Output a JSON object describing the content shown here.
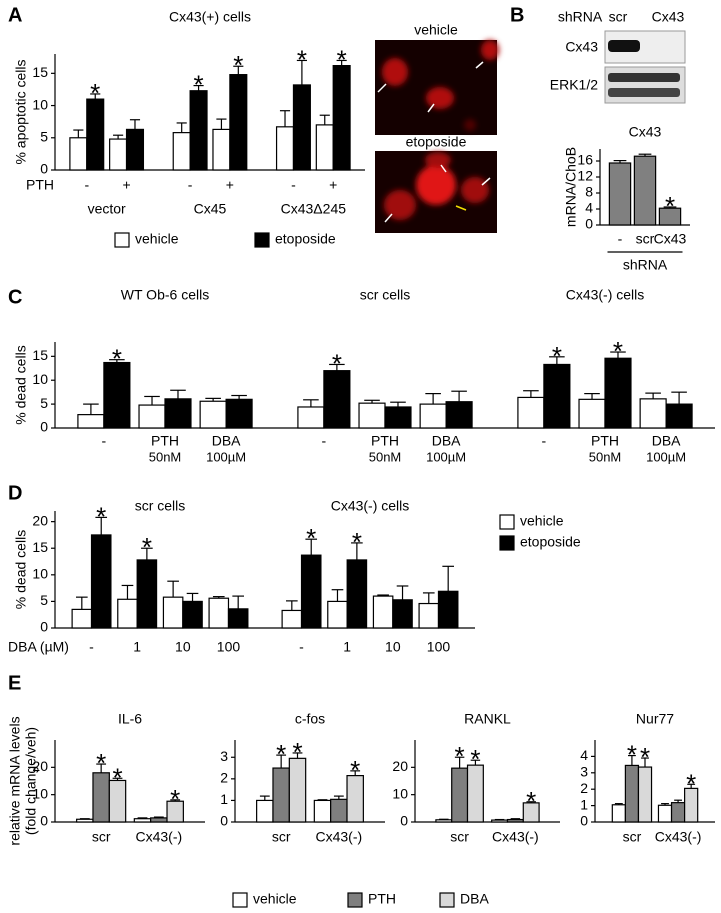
{
  "panels": [
    "A",
    "B",
    "C",
    "D",
    "E"
  ],
  "images": [
    {
      "label": "vehicle"
    },
    {
      "label": "etoposide"
    }
  ],
  "blot": {
    "header": "shRNA",
    "lanes": [
      "scr",
      "Cx43"
    ],
    "rows": [
      "Cx43",
      "ERK1/2"
    ]
  },
  "chart_data": [
    {
      "type": "bar",
      "title": "Cx43(+) cells",
      "ylabel": "% apoptotic cells",
      "xlabel": "PTH",
      "categories": [
        "-",
        "+",
        "-",
        "+",
        "-",
        "+"
      ],
      "groups": [
        "vector",
        "Cx45",
        "Cx43Δ245"
      ],
      "ylim": [
        0,
        18
      ],
      "yticks": [
        0,
        5,
        10,
        15
      ],
      "legend": "bottom",
      "series": [
        {
          "name": "vehicle",
          "color": "#ffffff",
          "values": [
            5,
            4.8,
            5.8,
            6.3,
            6.7,
            7
          ],
          "errors": [
            1.2,
            0.6,
            1.5,
            1.6,
            2.5,
            1.5
          ]
        },
        {
          "name": "etoposide",
          "color": "#000000",
          "values": [
            11,
            6.3,
            12.3,
            14.8,
            13.2,
            16.2
          ],
          "errors": [
            0.8,
            1.5,
            0.8,
            1.3,
            3.8,
            0.8
          ],
          "annotations": [
            "*",
            null,
            "*",
            "*",
            "*",
            "*"
          ]
        }
      ]
    },
    {
      "type": "bar",
      "title": "Cx43",
      "ylabel": "mRNA/ChoB",
      "categories": [
        "-",
        "scr",
        "Cx43"
      ],
      "groups": [
        "shRNA"
      ],
      "ylim": [
        0,
        19
      ],
      "yticks": [
        0,
        4,
        8,
        12,
        16
      ],
      "series": [
        {
          "color": "#808080",
          "values": [
            15.5,
            17.2,
            4.2
          ],
          "errors": [
            0.6,
            0.5,
            0.3
          ],
          "annotations": [
            null,
            null,
            "*"
          ]
        }
      ]
    },
    {
      "type": "bar",
      "ylabel": "% dead cells",
      "categories": [
        "-",
        "PTH",
        "DBA",
        "-",
        "PTH",
        "DBA",
        "-",
        "PTH",
        "DBA"
      ],
      "sublabels": [
        null,
        "50nM",
        "100µM",
        null,
        "50nM",
        "100µM",
        null,
        "50nM",
        "100µM"
      ],
      "groups": [
        "WT Ob-6 cells",
        "scr cells",
        "Cx43(-) cells"
      ],
      "ylim": [
        0,
        18
      ],
      "yticks": [
        0,
        5,
        10,
        15
      ],
      "series": [
        {
          "color": "#ffffff",
          "values": [
            2.8,
            4.8,
            5.6,
            4.4,
            5.2,
            5,
            6.4,
            6,
            6.1
          ],
          "errors": [
            2.2,
            1.8,
            0.6,
            1.5,
            0.6,
            2.2,
            1.4,
            1.2,
            1.2
          ]
        },
        {
          "color": "#000000",
          "values": [
            13.7,
            6.1,
            6,
            12,
            4.4,
            5.5,
            13.3,
            14.6,
            5
          ],
          "errors": [
            0.6,
            1.8,
            0.8,
            1.3,
            1,
            2.2,
            1.6,
            1.3,
            2.5
          ],
          "annotations": [
            "*",
            null,
            null,
            "*",
            null,
            null,
            "*",
            "*",
            null
          ]
        }
      ]
    },
    {
      "type": "bar",
      "ylabel": "% dead cells",
      "xlabel": "DBA (µM)",
      "categories": [
        "-",
        "1",
        "10",
        "100",
        "-",
        "1",
        "10",
        "100"
      ],
      "groups": [
        "scr cells",
        "Cx43(-) cells"
      ],
      "ylim": [
        0,
        22
      ],
      "yticks": [
        0,
        5,
        10,
        15,
        20
      ],
      "legend": "right",
      "series": [
        {
          "name": "vehicle",
          "color": "#ffffff",
          "values": [
            3.5,
            5.4,
            5.8,
            5.6,
            3.3,
            5,
            6,
            4.6
          ],
          "errors": [
            2.3,
            2.6,
            3,
            0.3,
            1.8,
            2.2,
            0.2,
            2
          ]
        },
        {
          "name": "etoposide",
          "color": "#000000",
          "values": [
            17.5,
            12.8,
            5,
            3.6,
            13.7,
            12.8,
            5.3,
            6.9
          ],
          "errors": [
            3.3,
            2.2,
            1.5,
            2.4,
            3,
            3.2,
            2.6,
            4.7
          ],
          "annotations": [
            "*",
            "*",
            null,
            null,
            "*",
            "*",
            null,
            null
          ]
        }
      ]
    },
    {
      "type": "bar",
      "title": "IL-6",
      "ylabel": [
        "relative mRNA levels",
        "(fold change/veh)"
      ],
      "categories": [
        "scr",
        "Cx43(-)"
      ],
      "ylim": [
        0,
        30
      ],
      "yticks": [
        0,
        10,
        20
      ],
      "legend": "bottom",
      "series": [
        {
          "name": "vehicle",
          "color": "#ffffff",
          "values": [
            1,
            1.2
          ],
          "errors": [
            0.2,
            0.3
          ]
        },
        {
          "name": "PTH",
          "color": "#7f7f7f",
          "values": [
            18,
            1.5
          ],
          "errors": [
            3.2,
            0.3
          ],
          "annotations": [
            "*",
            null
          ]
        },
        {
          "name": "DBA",
          "color": "#d9d9d9",
          "values": [
            15.2,
            7.6
          ],
          "errors": [
            0.8,
            0.5
          ],
          "annotations": [
            "*",
            "*"
          ]
        }
      ]
    },
    {
      "type": "bar",
      "title": "c-fos",
      "categories": [
        "scr",
        "Cx43(-)"
      ],
      "ylim": [
        0,
        3.8
      ],
      "yticks": [
        0,
        1,
        2,
        3
      ],
      "series": [
        {
          "color": "#ffffff",
          "values": [
            1,
            1
          ],
          "errors": [
            0.2,
            0.03
          ]
        },
        {
          "color": "#7f7f7f",
          "values": [
            2.5,
            1.05
          ],
          "errors": [
            0.6,
            0.15
          ],
          "annotations": [
            "*",
            null
          ]
        },
        {
          "color": "#d9d9d9",
          "values": [
            2.95,
            2.15
          ],
          "errors": [
            0.25,
            0.22
          ],
          "annotations": [
            "*",
            "*"
          ]
        }
      ]
    },
    {
      "type": "bar",
      "title": "RANKL",
      "categories": [
        "scr",
        "Cx43(-)"
      ],
      "ylim": [
        0,
        30
      ],
      "yticks": [
        0,
        10,
        20
      ],
      "series": [
        {
          "color": "#ffffff",
          "values": [
            0.8,
            0.7
          ],
          "errors": [
            0.2,
            0.2
          ]
        },
        {
          "color": "#7f7f7f",
          "values": [
            19.7,
            0.9
          ],
          "errors": [
            4,
            0.3
          ],
          "annotations": [
            "*",
            null
          ]
        },
        {
          "color": "#d9d9d9",
          "values": [
            20.8,
            7
          ],
          "errors": [
            1.8,
            0.4
          ],
          "annotations": [
            "*",
            "*"
          ]
        }
      ]
    },
    {
      "type": "bar",
      "title": "Nur77",
      "categories": [
        "scr",
        "Cx43(-)"
      ],
      "ylim": [
        0,
        5
      ],
      "yticks": [
        0,
        1,
        2,
        3,
        4
      ],
      "series": [
        {
          "color": "#ffffff",
          "values": [
            1.05,
            1.02
          ],
          "errors": [
            0.07,
            0.1
          ]
        },
        {
          "color": "#7f7f7f",
          "values": [
            3.45,
            1.18
          ],
          "errors": [
            0.6,
            0.15
          ],
          "annotations": [
            "*",
            null
          ]
        },
        {
          "color": "#d9d9d9",
          "values": [
            3.35,
            2.05
          ],
          "errors": [
            0.55,
            0.25
          ],
          "annotations": [
            "*",
            "*"
          ]
        }
      ]
    }
  ]
}
